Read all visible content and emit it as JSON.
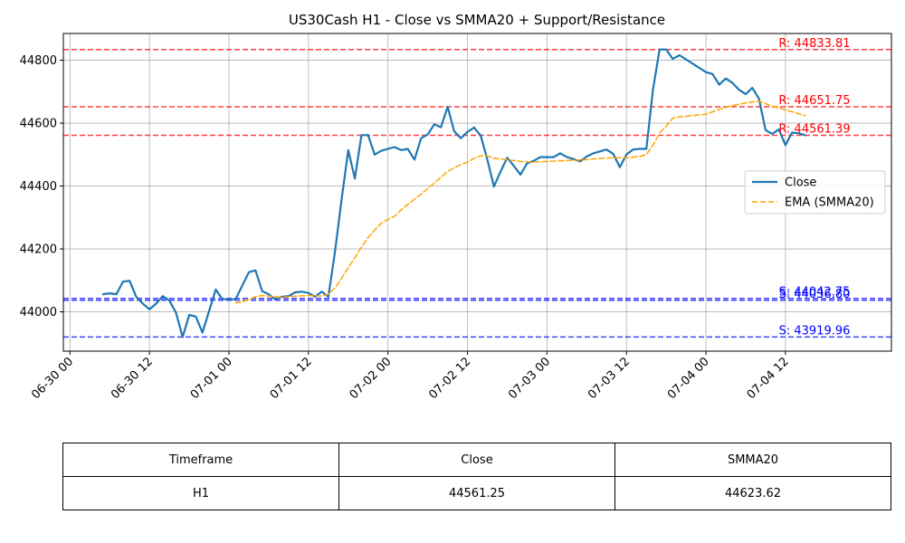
{
  "chart_data": {
    "type": "line",
    "title": "US30Cash H1 - Close vs SMMA20 + Support/Resistance",
    "xlabel": "",
    "ylabel": "",
    "x_range": [
      "2025-06-29T23:00",
      "2025-07-05T04:00"
    ],
    "ylim": [
      43875,
      44885
    ],
    "x_ticks": [
      {
        "t": "2025-06-30T00:00",
        "label": "06-30 00"
      },
      {
        "t": "2025-06-30T12:00",
        "label": "06-30 12"
      },
      {
        "t": "2025-07-01T00:00",
        "label": "07-01 00"
      },
      {
        "t": "2025-07-01T12:00",
        "label": "07-01 12"
      },
      {
        "t": "2025-07-02T00:00",
        "label": "07-02 00"
      },
      {
        "t": "2025-07-02T12:00",
        "label": "07-02 12"
      },
      {
        "t": "2025-07-03T00:00",
        "label": "07-03 00"
      },
      {
        "t": "2025-07-03T12:00",
        "label": "07-03 12"
      },
      {
        "t": "2025-07-04T00:00",
        "label": "07-04 00"
      },
      {
        "t": "2025-07-04T12:00",
        "label": "07-04 12"
      }
    ],
    "y_ticks": [
      44000,
      44200,
      44400,
      44600,
      44800
    ],
    "grid": true,
    "legend": {
      "placement": "right",
      "entries": [
        "Close",
        "EMA (SMMA20)"
      ]
    },
    "series": [
      {
        "name": "Close",
        "color": "#1f77b4",
        "style": "solid",
        "points": [
          [
            "2025-06-30T05:00",
            44056
          ],
          [
            "2025-06-30T06:00",
            44059
          ],
          [
            "2025-06-30T07:00",
            44056
          ],
          [
            "2025-06-30T08:00",
            44096
          ],
          [
            "2025-06-30T09:00",
            44099
          ],
          [
            "2025-06-30T10:00",
            44048
          ],
          [
            "2025-06-30T11:00",
            44026
          ],
          [
            "2025-06-30T12:00",
            44008
          ],
          [
            "2025-06-30T13:00",
            44026
          ],
          [
            "2025-06-30T14:00",
            44050
          ],
          [
            "2025-06-30T15:00",
            44036
          ],
          [
            "2025-06-30T16:00",
            43998
          ],
          [
            "2025-06-30T17:00",
            43920
          ],
          [
            "2025-06-30T18:00",
            43990
          ],
          [
            "2025-06-30T19:00",
            43985
          ],
          [
            "2025-06-30T20:00",
            43934
          ],
          [
            "2025-06-30T22:00",
            44071
          ],
          [
            "2025-06-30T23:00",
            44040
          ],
          [
            "2025-07-01T00:00",
            44040
          ],
          [
            "2025-07-01T01:00",
            44040
          ],
          [
            "2025-07-01T03:00",
            44126
          ],
          [
            "2025-07-01T04:00",
            44132
          ],
          [
            "2025-07-01T05:00",
            44066
          ],
          [
            "2025-07-01T06:00",
            44056
          ],
          [
            "2025-07-01T07:00",
            44040
          ],
          [
            "2025-07-01T08:00",
            44048
          ],
          [
            "2025-07-01T09:00",
            44050
          ],
          [
            "2025-07-01T10:00",
            44062
          ],
          [
            "2025-07-01T11:00",
            44064
          ],
          [
            "2025-07-01T12:00",
            44060
          ],
          [
            "2025-07-01T13:00",
            44048
          ],
          [
            "2025-07-01T14:00",
            44064
          ],
          [
            "2025-07-01T15:00",
            44048
          ],
          [
            "2025-07-01T16:00",
            44190
          ],
          [
            "2025-07-01T17:00",
            44356
          ],
          [
            "2025-07-01T18:00",
            44514
          ],
          [
            "2025-07-01T19:00",
            44424
          ],
          [
            "2025-07-01T20:00",
            44562
          ],
          [
            "2025-07-01T21:00",
            44562
          ],
          [
            "2025-07-01T22:00",
            44500
          ],
          [
            "2025-07-01T23:00",
            44512
          ],
          [
            "2025-07-02T00:00",
            44518
          ],
          [
            "2025-07-02T01:00",
            44524
          ],
          [
            "2025-07-02T02:00",
            44514
          ],
          [
            "2025-07-02T03:00",
            44518
          ],
          [
            "2025-07-02T04:00",
            44484
          ],
          [
            "2025-07-02T05:00",
            44552
          ],
          [
            "2025-07-02T06:00",
            44564
          ],
          [
            "2025-07-02T07:00",
            44596
          ],
          [
            "2025-07-02T08:00",
            44587
          ],
          [
            "2025-07-02T09:00",
            44652
          ],
          [
            "2025-07-02T10:00",
            44574
          ],
          [
            "2025-07-02T11:00",
            44552
          ],
          [
            "2025-07-02T12:00",
            44572
          ],
          [
            "2025-07-02T13:00",
            44586
          ],
          [
            "2025-07-02T14:00",
            44560
          ],
          [
            "2025-07-02T15:00",
            44484
          ],
          [
            "2025-07-02T16:00",
            44398
          ],
          [
            "2025-07-02T17:00",
            44446
          ],
          [
            "2025-07-02T18:00",
            44490
          ],
          [
            "2025-07-02T19:00",
            44464
          ],
          [
            "2025-07-02T20:00",
            44436
          ],
          [
            "2025-07-02T21:00",
            44472
          ],
          [
            "2025-07-02T22:00",
            44480
          ],
          [
            "2025-07-02T23:00",
            44492
          ],
          [
            "2025-07-03T00:00",
            44492
          ],
          [
            "2025-07-03T01:00",
            44492
          ],
          [
            "2025-07-03T02:00",
            44504
          ],
          [
            "2025-07-03T03:00",
            44492
          ],
          [
            "2025-07-03T04:00",
            44486
          ],
          [
            "2025-07-03T05:00",
            44478
          ],
          [
            "2025-07-03T06:00",
            44494
          ],
          [
            "2025-07-03T07:00",
            44504
          ],
          [
            "2025-07-03T08:00",
            44510
          ],
          [
            "2025-07-03T09:00",
            44516
          ],
          [
            "2025-07-03T10:00",
            44502
          ],
          [
            "2025-07-03T11:00",
            44460
          ],
          [
            "2025-07-03T12:00",
            44500
          ],
          [
            "2025-07-03T13:00",
            44516
          ],
          [
            "2025-07-03T14:00",
            44518
          ],
          [
            "2025-07-03T15:00",
            44518
          ],
          [
            "2025-07-03T16:00",
            44706
          ],
          [
            "2025-07-03T17:00",
            44834
          ],
          [
            "2025-07-03T18:00",
            44834
          ],
          [
            "2025-07-03T19:00",
            44804
          ],
          [
            "2025-07-03T20:00",
            44816
          ],
          [
            "2025-07-04T00:00",
            44762
          ],
          [
            "2025-07-04T01:00",
            44756
          ],
          [
            "2025-07-04T02:00",
            44722
          ],
          [
            "2025-07-04T03:00",
            44742
          ],
          [
            "2025-07-04T04:00",
            44728
          ],
          [
            "2025-07-04T05:00",
            44706
          ],
          [
            "2025-07-04T06:00",
            44692
          ],
          [
            "2025-07-04T07:00",
            44712
          ],
          [
            "2025-07-04T08:00",
            44678
          ],
          [
            "2025-07-04T09:00",
            44578
          ],
          [
            "2025-07-04T10:00",
            44566
          ],
          [
            "2025-07-04T11:00",
            44580
          ],
          [
            "2025-07-04T12:00",
            44530
          ],
          [
            "2025-07-04T13:00",
            44570
          ],
          [
            "2025-07-04T14:00",
            44568
          ],
          [
            "2025-07-04T15:00",
            44561.25
          ]
        ]
      },
      {
        "name": "EMA (SMMA20)",
        "color": "#ffa500",
        "style": "dashed",
        "points": [
          [
            "2025-07-01T01:00",
            44028
          ],
          [
            "2025-07-01T02:00",
            44032
          ],
          [
            "2025-07-01T03:00",
            44040
          ],
          [
            "2025-07-01T04:00",
            44048
          ],
          [
            "2025-07-01T05:00",
            44052
          ],
          [
            "2025-07-01T06:00",
            44050
          ],
          [
            "2025-07-01T08:00",
            44046
          ],
          [
            "2025-07-01T10:00",
            44050
          ],
          [
            "2025-07-01T12:00",
            44052
          ],
          [
            "2025-07-01T14:00",
            44050
          ],
          [
            "2025-07-01T15:00",
            44056
          ],
          [
            "2025-07-01T16:00",
            44076
          ],
          [
            "2025-07-01T17:00",
            44106
          ],
          [
            "2025-07-01T18:00",
            44140
          ],
          [
            "2025-07-01T19:00",
            44172
          ],
          [
            "2025-07-01T20:00",
            44206
          ],
          [
            "2025-07-01T21:00",
            44236
          ],
          [
            "2025-07-01T22:00",
            44260
          ],
          [
            "2025-07-01T23:00",
            44282
          ],
          [
            "2025-07-02T00:00",
            44294
          ],
          [
            "2025-07-02T01:00",
            44304
          ],
          [
            "2025-07-02T02:00",
            44324
          ],
          [
            "2025-07-02T03:00",
            44342
          ],
          [
            "2025-07-02T04:00",
            44358
          ],
          [
            "2025-07-02T05:00",
            44374
          ],
          [
            "2025-07-02T06:00",
            44392
          ],
          [
            "2025-07-02T07:00",
            44410
          ],
          [
            "2025-07-02T08:00",
            44428
          ],
          [
            "2025-07-02T09:00",
            44446
          ],
          [
            "2025-07-02T10:00",
            44458
          ],
          [
            "2025-07-02T11:00",
            44468
          ],
          [
            "2025-07-02T12:00",
            44476
          ],
          [
            "2025-07-02T13:00",
            44488
          ],
          [
            "2025-07-02T14:00",
            44496
          ],
          [
            "2025-07-02T15:00",
            44496
          ],
          [
            "2025-07-02T16:00",
            44488
          ],
          [
            "2025-07-02T18:00",
            44484
          ],
          [
            "2025-07-02T20:00",
            44478
          ],
          [
            "2025-07-02T22:00",
            44476
          ],
          [
            "2025-07-03T00:00",
            44478
          ],
          [
            "2025-07-03T02:00",
            44480
          ],
          [
            "2025-07-03T04:00",
            44482
          ],
          [
            "2025-07-03T06:00",
            44484
          ],
          [
            "2025-07-03T08:00",
            44488
          ],
          [
            "2025-07-03T10:00",
            44490
          ],
          [
            "2025-07-03T12:00",
            44490
          ],
          [
            "2025-07-03T14:00",
            44494
          ],
          [
            "2025-07-03T15:00",
            44500
          ],
          [
            "2025-07-03T16:00",
            44530
          ],
          [
            "2025-07-03T17:00",
            44568
          ],
          [
            "2025-07-03T18:00",
            44590
          ],
          [
            "2025-07-03T19:00",
            44616
          ],
          [
            "2025-07-03T20:00",
            44620
          ],
          [
            "2025-07-03T22:00",
            44624
          ],
          [
            "2025-07-04T00:00",
            44628
          ],
          [
            "2025-07-04T02:00",
            44644
          ],
          [
            "2025-07-04T04:00",
            44656
          ],
          [
            "2025-07-04T06:00",
            44664
          ],
          [
            "2025-07-04T08:00",
            44670
          ],
          [
            "2025-07-04T10:00",
            44654
          ],
          [
            "2025-07-04T12:00",
            44642
          ],
          [
            "2025-07-04T14:00",
            44630
          ],
          [
            "2025-07-04T15:00",
            44623.62
          ]
        ]
      }
    ],
    "resistance_levels": [
      {
        "value": 44833.81,
        "label": "R: 44833.81"
      },
      {
        "value": 44651.75,
        "label": "R: 44651.75"
      },
      {
        "value": 44561.39,
        "label": "R: 44561.39"
      }
    ],
    "support_levels": [
      {
        "value": 44042.75,
        "label": "S: 44042.75"
      },
      {
        "value": 44036.8,
        "label": "S: 44036.80"
      },
      {
        "value": 43919.96,
        "label": "S: 43919.96"
      }
    ],
    "colors": {
      "resistance": "#ff0000",
      "support": "#0000ff",
      "grid": "#b0b0b0"
    }
  },
  "table": {
    "headers": [
      "Timeframe",
      "Close",
      "SMMA20"
    ],
    "row": [
      "H1",
      "44561.25",
      "44623.62"
    ]
  }
}
